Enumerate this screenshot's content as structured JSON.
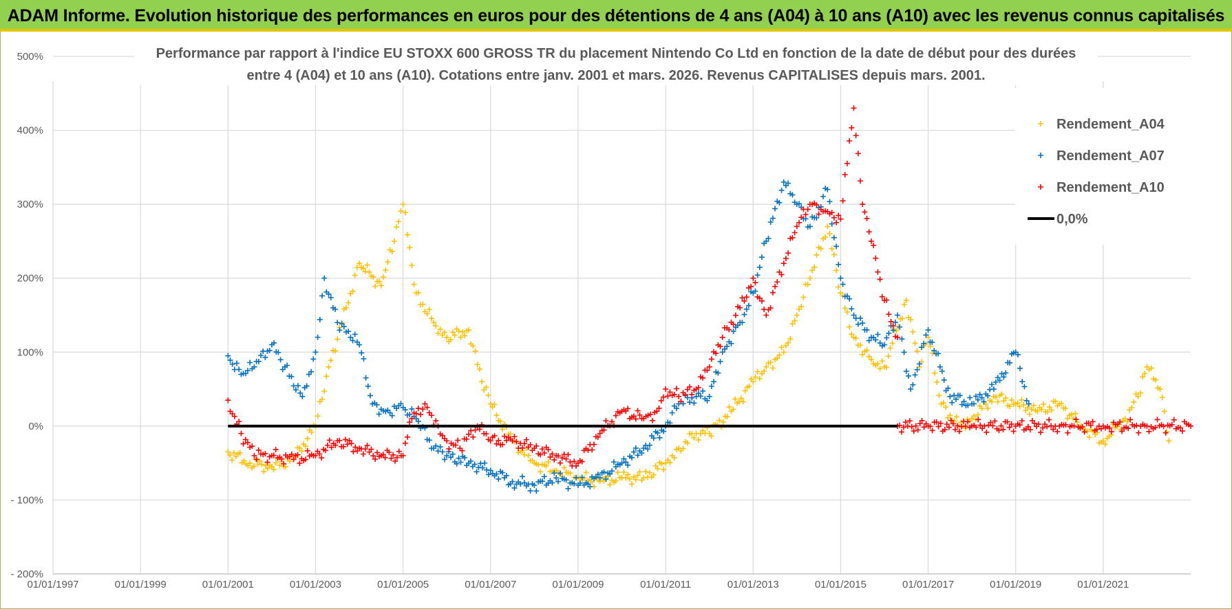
{
  "banner": {
    "title": "ADAM Informe. Evolution historique des performances en euros pour des détentions de 4 ans (A04) à 10 ans (A10) avec les revenus connus capitalisés"
  },
  "chart_data": {
    "type": "scatter",
    "title_line1": "Performance par rapport à l'indice EU STOXX 600 GROSS TR  du placement Nintendo Co Ltd en fonction de la date de début pour des durées",
    "title_line2": "entre 4 (A04) et 10 ans (A10).  Cotations entre janv. 2001 et mars. 2026.  Revenus CAPITALISES depuis mars. 2001.",
    "xlabel": "",
    "ylabel": "",
    "xlim": [
      1997.0,
      2023.0
    ],
    "ylim": [
      -200,
      500
    ],
    "x_ticks": [
      1997,
      1999,
      2001,
      2003,
      2005,
      2007,
      2009,
      2011,
      2013,
      2015,
      2017,
      2019,
      2021
    ],
    "x_tick_labels": [
      "01/01/1997",
      "01/01/1999",
      "01/01/2001",
      "01/01/2003",
      "01/01/2005",
      "01/01/2007",
      "01/01/2009",
      "01/01/2011",
      "01/01/2013",
      "01/01/2015",
      "01/01/2017",
      "01/01/2019",
      "01/01/2021"
    ],
    "y_ticks": [
      -200,
      -100,
      0,
      100,
      200,
      300,
      400,
      500
    ],
    "y_tick_labels": [
      "- 200%",
      "- 100%",
      "0%",
      "100%",
      "200%",
      "300%",
      "400%",
      "500%"
    ],
    "grid": true,
    "legend_position": "top-right",
    "series": [
      {
        "name": "Rendement_A04",
        "color": "#ffc000",
        "marker": "plus",
        "x": [
          2001.0,
          2001.5,
          2002.0,
          2002.5,
          2003.0,
          2003.3,
          2003.7,
          2004.0,
          2004.5,
          2004.8,
          2005.0,
          2005.3,
          2005.7,
          2006.0,
          2006.5,
          2006.8,
          2007.0,
          2007.5,
          2008.0,
          2008.5,
          2009.0,
          2009.5,
          2010.0,
          2010.5,
          2011.0,
          2011.3,
          2011.7,
          2012.0,
          2012.5,
          2013.0,
          2013.3,
          2013.7,
          2014.0,
          2014.3,
          2014.7,
          2015.0,
          2015.3,
          2015.7,
          2016.0,
          2016.5,
          2016.8,
          2017.0,
          2017.3,
          2017.7,
          2018.0,
          2018.5,
          2019.0,
          2019.5,
          2020.0,
          2020.5,
          2021.0,
          2021.5,
          2021.8,
          2022.0,
          2022.3,
          2022.5
        ],
        "y": [
          -35,
          -50,
          -55,
          -45,
          0,
          80,
          160,
          220,
          190,
          250,
          300,
          180,
          140,
          120,
          130,
          60,
          30,
          -20,
          -50,
          -60,
          -70,
          -75,
          -70,
          -70,
          -50,
          -30,
          -10,
          -10,
          20,
          60,
          80,
          100,
          150,
          200,
          270,
          180,
          120,
          90,
          80,
          170,
          80,
          120,
          30,
          0,
          10,
          40,
          30,
          20,
          30,
          0,
          -20,
          10,
          40,
          80,
          50,
          -20
        ]
      },
      {
        "name": "Rendement_A07",
        "color": "#0070c0",
        "marker": "plus",
        "x": [
          2001.0,
          2001.3,
          2001.6,
          2002.0,
          2002.3,
          2002.7,
          2003.0,
          2003.2,
          2003.5,
          2003.8,
          2004.0,
          2004.3,
          2004.6,
          2005.0,
          2005.3,
          2005.7,
          2006.0,
          2006.5,
          2007.0,
          2007.5,
          2008.0,
          2008.5,
          2009.0,
          2009.5,
          2010.0,
          2010.5,
          2011.0,
          2011.3,
          2011.7,
          2012.0,
          2012.3,
          2012.7,
          2013.0,
          2013.3,
          2013.7,
          2014.0,
          2014.3,
          2014.7,
          2015.0,
          2015.3,
          2015.7,
          2016.0,
          2016.3,
          2016.6,
          2017.0,
          2017.5,
          2018.0,
          2018.5,
          2019.0,
          2019.3
        ],
        "y": [
          95,
          70,
          80,
          110,
          80,
          40,
          100,
          200,
          140,
          120,
          110,
          30,
          20,
          25,
          10,
          -30,
          -40,
          -50,
          -60,
          -75,
          -80,
          -70,
          -80,
          -70,
          -50,
          -30,
          0,
          30,
          40,
          40,
          100,
          140,
          180,
          250,
          330,
          300,
          270,
          320,
          200,
          150,
          120,
          110,
          150,
          50,
          130,
          40,
          30,
          50,
          100,
          30
        ]
      },
      {
        "name": "Rendement_A10",
        "color": "#ff0000",
        "marker": "plus",
        "x": [
          2001.0,
          2001.3,
          2001.6,
          2002.0,
          2002.5,
          2003.0,
          2003.5,
          2004.0,
          2004.5,
          2005.0,
          2005.2,
          2005.5,
          2005.8,
          2006.0,
          2006.3,
          2006.7,
          2007.0,
          2007.5,
          2008.0,
          2008.5,
          2009.0,
          2009.5,
          2010.0,
          2010.5,
          2010.8,
          2011.0,
          2011.3,
          2011.7,
          2012.0,
          2012.3,
          2012.7,
          2013.0,
          2013.3,
          2013.7,
          2014.0,
          2014.3,
          2014.7,
          2015.0,
          2015.1,
          2015.3,
          2015.5,
          2015.7,
          2016.0,
          2016.3
        ],
        "y": [
          35,
          -10,
          -40,
          -40,
          -45,
          -40,
          -20,
          -30,
          -40,
          -40,
          10,
          30,
          0,
          -20,
          -30,
          0,
          -20,
          -20,
          -30,
          -40,
          -50,
          -10,
          20,
          10,
          20,
          50,
          40,
          50,
          80,
          120,
          160,
          200,
          150,
          220,
          270,
          300,
          290,
          280,
          340,
          430,
          300,
          250,
          170,
          120
        ]
      },
      {
        "name": "Rendement_A10",
        "color": "#ff0000",
        "marker": "plus",
        "x": [
          2016.3,
          2017.0,
          2018.0,
          2019.0,
          2020.0,
          2021.0,
          2022.0,
          2023.0
        ],
        "y": [
          0,
          0,
          0,
          0,
          0,
          0,
          0,
          0
        ]
      },
      {
        "name": "0,0%",
        "color": "#000000",
        "marker": "line",
        "x": [
          2001.0,
          2016.3
        ],
        "y": [
          0,
          0
        ]
      }
    ],
    "legend": [
      {
        "label": "Rendement_A04",
        "color": "#ffc000",
        "marker": "plus"
      },
      {
        "label": "Rendement_A07",
        "color": "#0070c0",
        "marker": "plus"
      },
      {
        "label": "Rendement_A10",
        "color": "#ff0000",
        "marker": "plus"
      },
      {
        "label": "0,0%",
        "color": "#000000",
        "marker": "line"
      }
    ]
  }
}
